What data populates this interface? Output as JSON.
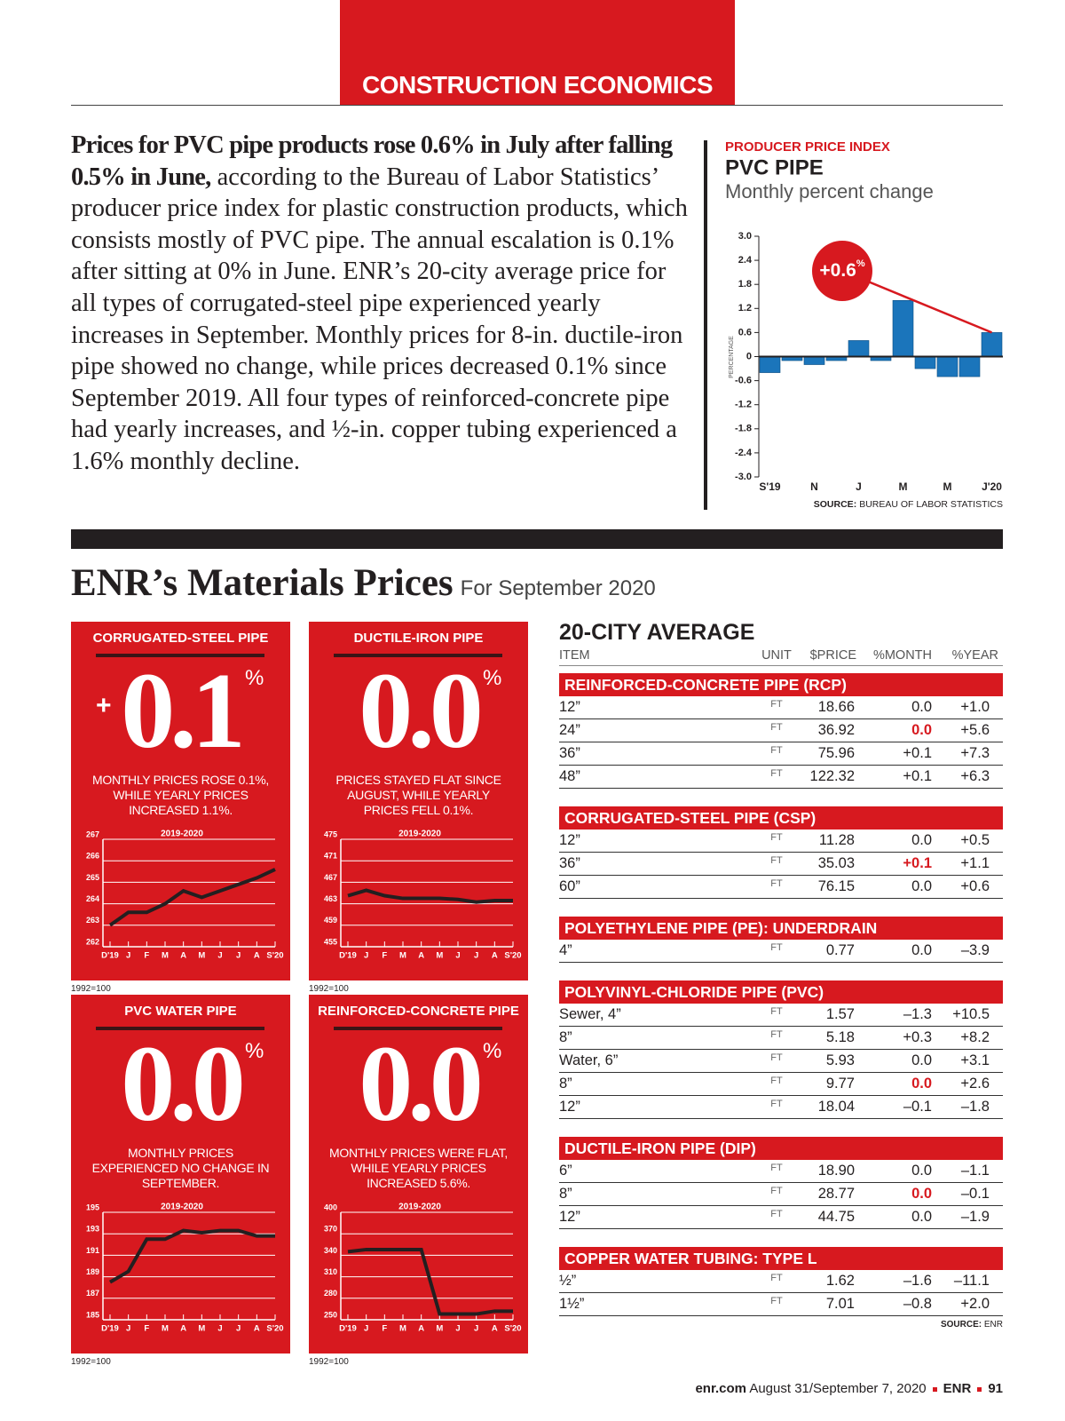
{
  "header": {
    "section": "CONSTRUCTION ECONOMICS"
  },
  "intro": {
    "lead": "Prices for PVC pipe products rose 0.6% in July after falling 0.5% in June,",
    "body": "according to the Bureau of Labor Statistics’ producer price index for plastic construction products, which consists mostly of PVC pipe. The annual escalation is 0.1% after sitting at 0% in June. ENR’s 20-city average price for all types of corrugated-steel pipe experienced yearly increases in September. Monthly prices for 8-in. ductile-iron pipe showed no change, while prices decreased 0.1% since September 2019. All four types of reinforced-concrete pipe had yearly increases, and ½-in. copper tubing experienced a 1.6% monthly decline."
  },
  "ppi_chart": {
    "type": "bar",
    "kicker": "PRODUCER PRICE INDEX",
    "title": "PVC PIPE",
    "subtitle": "Monthly percent change",
    "y_label": "PERCENTAGE",
    "categories": [
      "S'19",
      null,
      "N",
      null,
      "J",
      null,
      "M",
      null,
      "M",
      null,
      "J'20"
    ],
    "values": [
      -0.4,
      -0.1,
      -0.2,
      -0.1,
      0.4,
      -0.1,
      1.4,
      -0.3,
      -0.5,
      -0.5,
      0.6
    ],
    "color": "#1b75bb",
    "ylim": [
      -3,
      3
    ],
    "yticks": [
      {
        "value": 3,
        "label": "3.0"
      },
      2.4,
      1.8,
      1.2,
      0.6,
      0,
      -0.6,
      -1.2,
      -1.8,
      -2.4,
      {
        "value": -3,
        "label": "-3.0"
      }
    ],
    "annotation": {
      "text": "+0.6",
      "unit": "%"
    },
    "annotation_color": "#d7191f",
    "source_label": "SOURCE:",
    "source": "BUREAU OF LABOR STATISTICS"
  },
  "materials": {
    "title": "ENR’s Materials Prices",
    "subtitle": "For September 2020",
    "card_color": "#d7191f",
    "cards": [
      {
        "title": "CORRUGATED-STEEL PIPE",
        "sign": "+",
        "figure": "0.1",
        "unit": "%",
        "text": "MONTHLY PRICES ROSE 0.1%, WHILE YEARLY PRICES INCREASED 1.1%.",
        "base": "1992=100",
        "chart": {
          "type": "line",
          "title": "2019-2020",
          "categories": [
            "D'19",
            "J",
            "F",
            "M",
            "A",
            "M",
            "J",
            "J",
            "A",
            "S'20"
          ],
          "values": [
            263.0,
            263.6,
            263.6,
            264.0,
            264.6,
            264.3,
            264.6,
            264.9,
            265.2,
            265.6
          ],
          "ylim": [
            262,
            267
          ],
          "yticks": [
            262,
            263,
            264,
            265,
            266,
            267
          ],
          "color": "#231f20"
        }
      },
      {
        "title": "DUCTILE-IRON PIPE",
        "figure": "0.0",
        "unit": "%",
        "text": "PRICES STAYED FLAT SINCE AUGUST, WHILE YEARLY PRICES FELL 0.1%.",
        "base": "1992=100",
        "chart": {
          "type": "line",
          "title": "2019-2020",
          "categories": [
            "D'19",
            "J",
            "F",
            "M",
            "A",
            "M",
            "J",
            "J",
            "A",
            "S'20"
          ],
          "values": [
            464.5,
            465.5,
            464.5,
            464,
            464,
            464,
            463.8,
            463.3,
            463.6,
            463.6
          ],
          "ylim": [
            455,
            475
          ],
          "yticks": [
            455,
            459,
            463,
            467,
            471,
            475
          ],
          "color": "#231f20"
        }
      },
      {
        "title": "PVC WATER PIPE",
        "figure": "0.0",
        "unit": "%",
        "text": "MONTHLY PRICES EXPERIENCED NO CHANGE IN SEPTEMBER.",
        "base": "1992=100",
        "chart": {
          "type": "line",
          "title": "2019-2020",
          "categories": [
            "D'19",
            "J",
            "F",
            "M",
            "A",
            "M",
            "J",
            "J",
            "A",
            "S'20"
          ],
          "values": [
            188.5,
            189.5,
            192.5,
            192.5,
            193.3,
            193.1,
            193.3,
            193.3,
            192.8,
            192.8
          ],
          "ylim": [
            185,
            195
          ],
          "yticks": [
            185,
            187,
            189,
            191,
            193,
            195
          ],
          "color": "#231f20"
        }
      },
      {
        "title": "REINFORCED-CONCRETE PIPE",
        "figure": "0.0",
        "unit": "%",
        "text": "MONTHLY PRICES WERE FLAT, WHILE YEARLY PRICES INCREASED 5.6%.",
        "base": "1992=100",
        "chart": {
          "type": "line",
          "title": "2019-2020",
          "categories": [
            "D'19",
            "J",
            "F",
            "M",
            "A",
            "M",
            "J",
            "J",
            "A",
            "S'20"
          ],
          "values": [
            345,
            348,
            348,
            348,
            348,
            258,
            258,
            258,
            262,
            262
          ],
          "ylim": [
            250,
            400
          ],
          "yticks": [
            250,
            280,
            310,
            340,
            370,
            400
          ],
          "color": "#231f20"
        }
      }
    ]
  },
  "table": {
    "title": "20-CITY AVERAGE",
    "columns": [
      "ITEM",
      "UNIT",
      "$PRICE",
      "%MONTH",
      "%YEAR"
    ],
    "highlight_color": "#d7191f",
    "sections": [
      {
        "title": "REINFORCED-CONCRETE PIPE (RCP)",
        "rows": [
          {
            "item": "12”",
            "unit": "FT",
            "price": "18.66",
            "month": "0.0",
            "year": "+1.0"
          },
          {
            "item": "24”",
            "unit": "FT",
            "price": "36.92",
            "month": "0.0",
            "year": "+5.6",
            "highlight": true
          },
          {
            "item": "36”",
            "unit": "FT",
            "price": "75.96",
            "month": "+0.1",
            "year": "+7.3"
          },
          {
            "item": "48”",
            "unit": "FT",
            "price": "122.32",
            "month": "+0.1",
            "year": "+6.3"
          }
        ]
      },
      {
        "title": "CORRUGATED-STEEL PIPE (CSP)",
        "rows": [
          {
            "item": "12”",
            "unit": "FT",
            "price": "11.28",
            "month": "0.0",
            "year": "+0.5"
          },
          {
            "item": "36”",
            "unit": "FT",
            "price": "35.03",
            "month": "+0.1",
            "year": "+1.1",
            "highlight": true
          },
          {
            "item": "60”",
            "unit": "FT",
            "price": "76.15",
            "month": "0.0",
            "year": "+0.6"
          }
        ]
      },
      {
        "title": "POLYETHYLENE PIPE (PE): UNDERDRAIN",
        "rows": [
          {
            "item": "4”",
            "unit": "FT",
            "price": "0.77",
            "month": "0.0",
            "year": "–3.9"
          }
        ]
      },
      {
        "title": "POLYVINYL-CHLORIDE PIPE (PVC)",
        "rows": [
          {
            "item": "Sewer, 4”",
            "unit": "FT",
            "price": "1.57",
            "month": "–1.3",
            "year": "+10.5"
          },
          {
            "item": "8”",
            "unit": "FT",
            "price": "5.18",
            "month": "+0.3",
            "year": "+8.2"
          },
          {
            "item": "Water, 6”",
            "unit": "FT",
            "price": "5.93",
            "month": "0.0",
            "year": "+3.1"
          },
          {
            "item": "8”",
            "unit": "FT",
            "price": "9.77",
            "month": "0.0",
            "year": "+2.6",
            "highlight": true
          },
          {
            "item": "12”",
            "unit": "FT",
            "price": "18.04",
            "month": "–0.1",
            "year": "–1.8"
          }
        ]
      },
      {
        "title": "DUCTILE-IRON PIPE (DIP)",
        "rows": [
          {
            "item": "6”",
            "unit": "FT",
            "price": "18.90",
            "month": "0.0",
            "year": "–1.1"
          },
          {
            "item": "8”",
            "unit": "FT",
            "price": "28.77",
            "month": "0.0",
            "year": "–0.1",
            "highlight": true
          },
          {
            "item": "12”",
            "unit": "FT",
            "price": "44.75",
            "month": "0.0",
            "year": "–1.9"
          }
        ]
      },
      {
        "title": "COPPER WATER TUBING: TYPE L",
        "rows": [
          {
            "item": "½”",
            "unit": "FT",
            "price": "1.62",
            "month": "–1.6",
            "year": "–11.1"
          },
          {
            "item": "1½”",
            "unit": "FT",
            "price": "7.01",
            "month": "–0.8",
            "year": "+2.0"
          }
        ]
      }
    ],
    "source_label": "SOURCE:",
    "source": "ENR"
  },
  "footer": {
    "site": "enr.com",
    "issue": "August 31/September 7, 2020",
    "brand": "ENR",
    "page": "91"
  }
}
